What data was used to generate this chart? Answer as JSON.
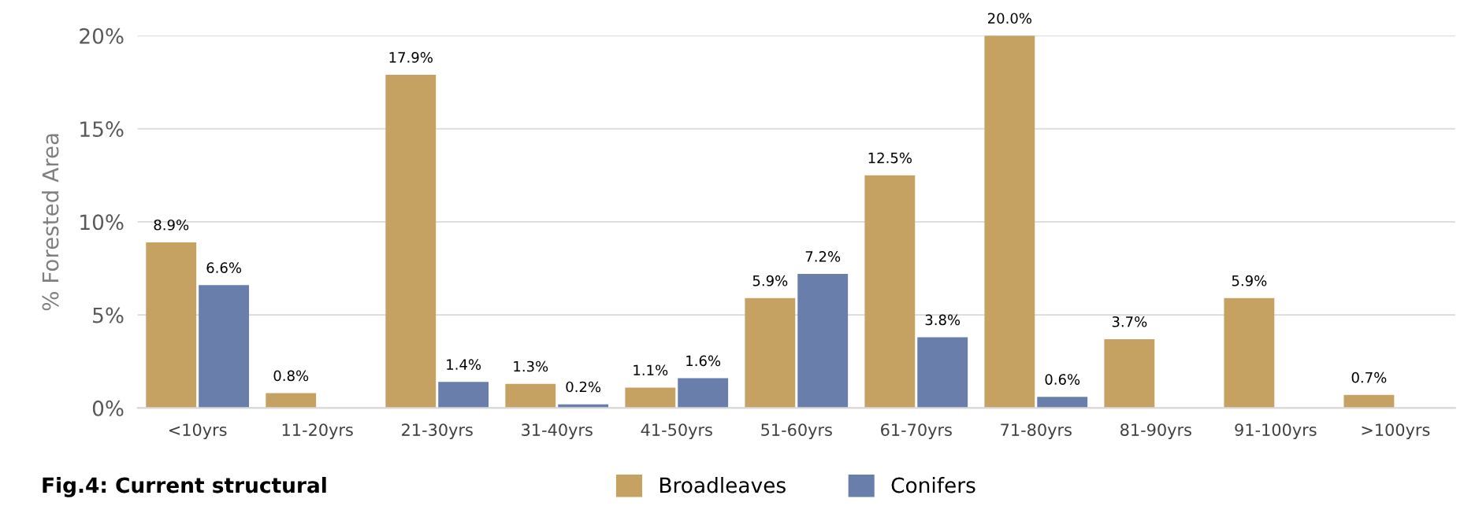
{
  "chart_data": {
    "type": "bar",
    "ylabel": "% Forested Area",
    "categories": [
      "<10yrs",
      "11-20yrs",
      "21-30yrs",
      "31-40yrs",
      "41-50yrs",
      "51-60yrs",
      "61-70yrs",
      "71-80yrs",
      "81-90yrs",
      "91-100yrs",
      ">100yrs"
    ],
    "series": [
      {
        "name": "Broadleaves",
        "color": "#c5a261",
        "values": [
          8.9,
          0.8,
          17.9,
          1.3,
          1.1,
          5.9,
          12.5,
          20.0,
          3.7,
          5.9,
          0.7
        ],
        "value_labels": [
          "8.9%",
          "0.8%",
          "17.9%",
          "1.3%",
          "1.1%",
          "5.9%",
          "12.5%",
          "20.0%",
          "3.7%",
          "5.9%",
          "0.7%"
        ]
      },
      {
        "name": "Conifers",
        "color": "#6a7eab",
        "values": [
          6.6,
          null,
          1.4,
          0.2,
          1.6,
          7.2,
          3.8,
          0.6,
          0,
          null,
          null
        ],
        "value_labels": [
          "6.6%",
          null,
          "1.4%",
          "0.2%",
          "1.6%",
          "7.2%",
          "3.8%",
          "0.6%",
          null,
          null,
          null
        ]
      }
    ],
    "ylim": [
      0,
      20
    ],
    "yticks": [
      {
        "value": 0,
        "label": "0%"
      },
      {
        "value": 5,
        "label": "5%"
      },
      {
        "value": 10,
        "label": "10%"
      },
      {
        "value": 15,
        "label": "15%"
      },
      {
        "value": 20,
        "label": "20%"
      }
    ],
    "grid": "y",
    "legend": "bottom",
    "annotations": [
      "Fig.4: Current structural"
    ]
  }
}
